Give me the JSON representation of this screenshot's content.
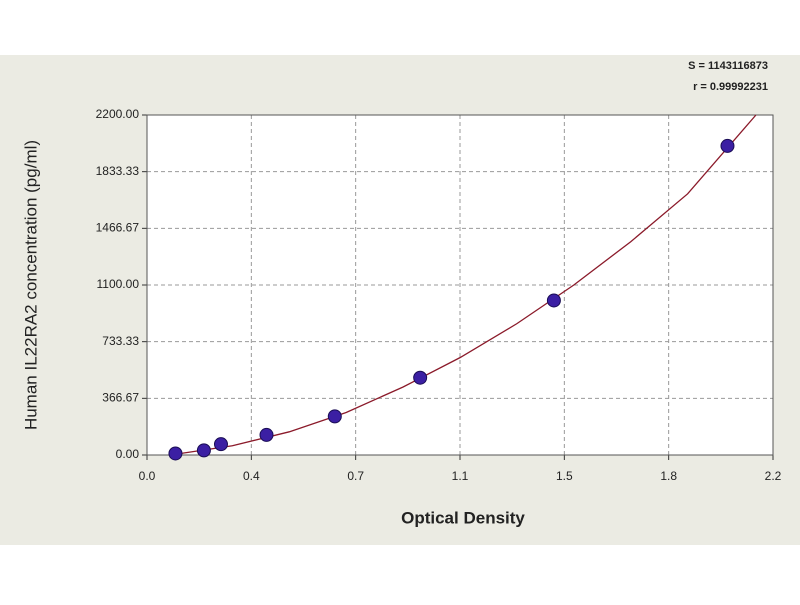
{
  "chart_data": {
    "type": "scatter",
    "x_label": "Optical Density",
    "y_label": "Human IL22RA2 concentration (pg/ml)",
    "annotations": [
      "S = 1143116873",
      "r = 0.99992231"
    ],
    "xlim": [
      0,
      2.2
    ],
    "xticks": [
      {
        "value": 0,
        "label": "0.0"
      },
      {
        "value": 0.3667,
        "label": "0.4"
      },
      {
        "value": 0.7333,
        "label": "0.7"
      },
      1.1,
      {
        "value": 1.4667,
        "label": "1.5"
      },
      {
        "value": 1.8333,
        "label": "1.8"
      },
      2.2
    ],
    "ylim": [
      0,
      2200
    ],
    "yticks": [
      {
        "value": 0,
        "label": "0.00"
      },
      {
        "value": 366.67,
        "label": "366.67"
      },
      {
        "value": 733.33,
        "label": "733.33"
      },
      {
        "value": 1100,
        "label": "1100.00"
      },
      {
        "value": 1466.67,
        "label": "1466.67"
      },
      {
        "value": 1833.33,
        "label": "1833.33"
      },
      {
        "value": 2200,
        "label": "2200.00"
      }
    ],
    "grid": true,
    "series": [
      {
        "mode": "line",
        "color": "#8b1a2a",
        "x": [
          0.1,
          0.3,
          0.5,
          0.7,
          0.9,
          1.1,
          1.3,
          1.5,
          1.7,
          1.9,
          2.14
        ],
        "values": [
          5,
          60,
          150,
          275,
          440,
          630,
          850,
          1100,
          1380,
          1690,
          2200
        ]
      },
      {
        "mode": "markers",
        "color": "#3b1fa3",
        "x": [
          0.1,
          0.2,
          0.26,
          0.42,
          0.66,
          0.96,
          1.43,
          2.04
        ],
        "values": [
          10,
          30,
          70,
          130,
          250,
          500,
          1000,
          2000
        ]
      }
    ]
  }
}
